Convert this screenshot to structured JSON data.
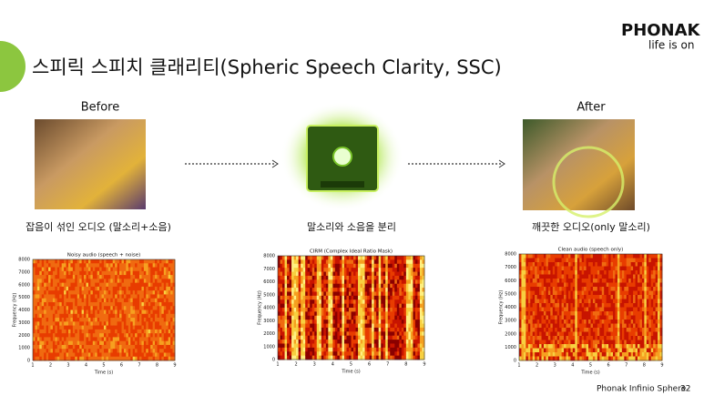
{
  "logo": {
    "brand": "PHONAK",
    "tagline": "life is on"
  },
  "title": "스피릭 스피치 클래리티(Spheric Speech Clarity, SSC)",
  "columns": [
    {
      "heading": "Before",
      "caption": "잡음이 섞인 오디오 (말소리+소음)",
      "plot": {
        "title": "Noisy audio (speech + noise)",
        "xlabel": "Time (s)",
        "ylabel": "Frequency (Hz)",
        "xticks": [
          1,
          2,
          3,
          4,
          5,
          6,
          7,
          8,
          9
        ],
        "yticks": [
          0,
          1000,
          2000,
          3000,
          4000,
          5000,
          6000,
          7000,
          8000
        ]
      }
    },
    {
      "caption": "말소리와 소음을 분리",
      "plot": {
        "title": "CIRM (Complex Ideal Ratio Mask)",
        "xlabel": "Time (s)",
        "ylabel": "Frequency (Hz)",
        "xticks": [
          1,
          2,
          3,
          4,
          5,
          6,
          7,
          8,
          9
        ],
        "yticks": [
          0,
          1000,
          2000,
          3000,
          4000,
          5000,
          6000,
          7000,
          8000
        ]
      }
    },
    {
      "heading": "After",
      "caption": "깨끗한 오디오(only 말소리)",
      "plot": {
        "title": "Clean audio (speech only)",
        "xlabel": "Time (s)",
        "ylabel": "Frequency (Hz)",
        "xticks": [
          1,
          2,
          3,
          4,
          5,
          6,
          7,
          8,
          9
        ],
        "yticks": [
          0,
          1000,
          2000,
          3000,
          4000,
          5000,
          6000,
          7000,
          8000
        ]
      }
    }
  ],
  "footer": {
    "text": "Phonak Infinio Sphere",
    "page": "32"
  }
}
